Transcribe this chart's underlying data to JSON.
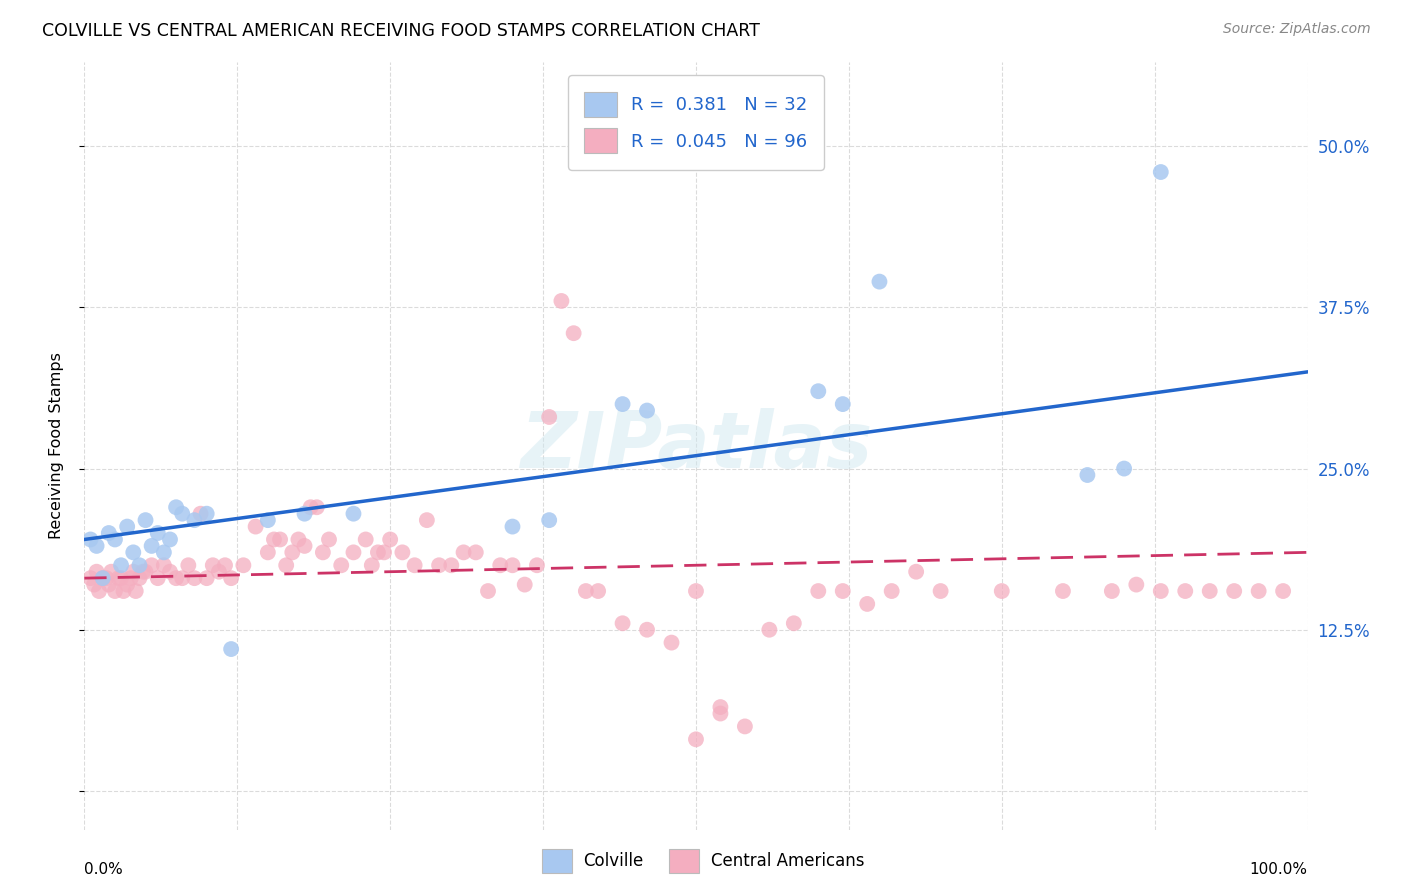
{
  "title": "COLVILLE VS CENTRAL AMERICAN RECEIVING FOOD STAMPS CORRELATION CHART",
  "source": "Source: ZipAtlas.com",
  "ylabel": "Receiving Food Stamps",
  "colville_R": 0.381,
  "colville_N": 32,
  "central_R": 0.045,
  "central_N": 96,
  "colville_color": "#a8c8f0",
  "central_color": "#f4aec0",
  "trend_colville_color": "#2266cc",
  "trend_central_color": "#cc3366",
  "ytick_vals": [
    0.0,
    0.125,
    0.25,
    0.375,
    0.5
  ],
  "ytick_labels": [
    "",
    "12.5%",
    "25.0%",
    "37.5%",
    "50.0%"
  ],
  "colville_x": [
    0.005,
    0.01,
    0.015,
    0.02,
    0.025,
    0.03,
    0.035,
    0.04,
    0.045,
    0.05,
    0.055,
    0.06,
    0.065,
    0.07,
    0.075,
    0.08,
    0.09,
    0.1,
    0.12,
    0.15,
    0.18,
    0.22,
    0.35,
    0.38,
    0.44,
    0.46,
    0.6,
    0.62,
    0.65,
    0.82,
    0.85,
    0.88
  ],
  "colville_y": [
    0.195,
    0.19,
    0.165,
    0.2,
    0.195,
    0.175,
    0.205,
    0.185,
    0.175,
    0.21,
    0.19,
    0.2,
    0.185,
    0.195,
    0.22,
    0.215,
    0.21,
    0.215,
    0.11,
    0.21,
    0.215,
    0.215,
    0.205,
    0.21,
    0.3,
    0.295,
    0.31,
    0.3,
    0.395,
    0.245,
    0.25,
    0.48
  ],
  "central_x": [
    0.005,
    0.008,
    0.01,
    0.012,
    0.015,
    0.018,
    0.02,
    0.022,
    0.025,
    0.028,
    0.03,
    0.032,
    0.035,
    0.038,
    0.04,
    0.042,
    0.045,
    0.048,
    0.05,
    0.055,
    0.06,
    0.065,
    0.07,
    0.075,
    0.08,
    0.085,
    0.09,
    0.095,
    0.1,
    0.105,
    0.11,
    0.115,
    0.12,
    0.13,
    0.14,
    0.15,
    0.155,
    0.16,
    0.165,
    0.17,
    0.175,
    0.18,
    0.185,
    0.19,
    0.195,
    0.2,
    0.21,
    0.22,
    0.23,
    0.235,
    0.24,
    0.245,
    0.25,
    0.26,
    0.27,
    0.28,
    0.29,
    0.3,
    0.31,
    0.32,
    0.33,
    0.34,
    0.35,
    0.36,
    0.37,
    0.38,
    0.39,
    0.4,
    0.41,
    0.42,
    0.44,
    0.46,
    0.48,
    0.5,
    0.52,
    0.54,
    0.56,
    0.58,
    0.6,
    0.62,
    0.64,
    0.66,
    0.68,
    0.7,
    0.75,
    0.8,
    0.84,
    0.86,
    0.88,
    0.9,
    0.92,
    0.94,
    0.96,
    0.98,
    0.5,
    0.52
  ],
  "central_y": [
    0.165,
    0.16,
    0.17,
    0.155,
    0.165,
    0.165,
    0.16,
    0.17,
    0.155,
    0.165,
    0.165,
    0.155,
    0.16,
    0.165,
    0.17,
    0.155,
    0.165,
    0.17,
    0.17,
    0.175,
    0.165,
    0.175,
    0.17,
    0.165,
    0.165,
    0.175,
    0.165,
    0.215,
    0.165,
    0.175,
    0.17,
    0.175,
    0.165,
    0.175,
    0.205,
    0.185,
    0.195,
    0.195,
    0.175,
    0.185,
    0.195,
    0.19,
    0.22,
    0.22,
    0.185,
    0.195,
    0.175,
    0.185,
    0.195,
    0.175,
    0.185,
    0.185,
    0.195,
    0.185,
    0.175,
    0.21,
    0.175,
    0.175,
    0.185,
    0.185,
    0.155,
    0.175,
    0.175,
    0.16,
    0.175,
    0.29,
    0.38,
    0.355,
    0.155,
    0.155,
    0.13,
    0.125,
    0.115,
    0.155,
    0.065,
    0.05,
    0.125,
    0.13,
    0.155,
    0.155,
    0.145,
    0.155,
    0.17,
    0.155,
    0.155,
    0.155,
    0.155,
    0.16,
    0.155,
    0.155,
    0.155,
    0.155,
    0.155,
    0.155,
    0.04,
    0.06
  ],
  "xlim": [
    0.0,
    1.0
  ],
  "ylim": [
    -0.03,
    0.565
  ],
  "xtick_vals": [
    0.0,
    0.125,
    0.25,
    0.375,
    0.5,
    0.625,
    0.75,
    0.875,
    1.0
  ],
  "background_color": "#ffffff",
  "grid_color": "#cccccc"
}
